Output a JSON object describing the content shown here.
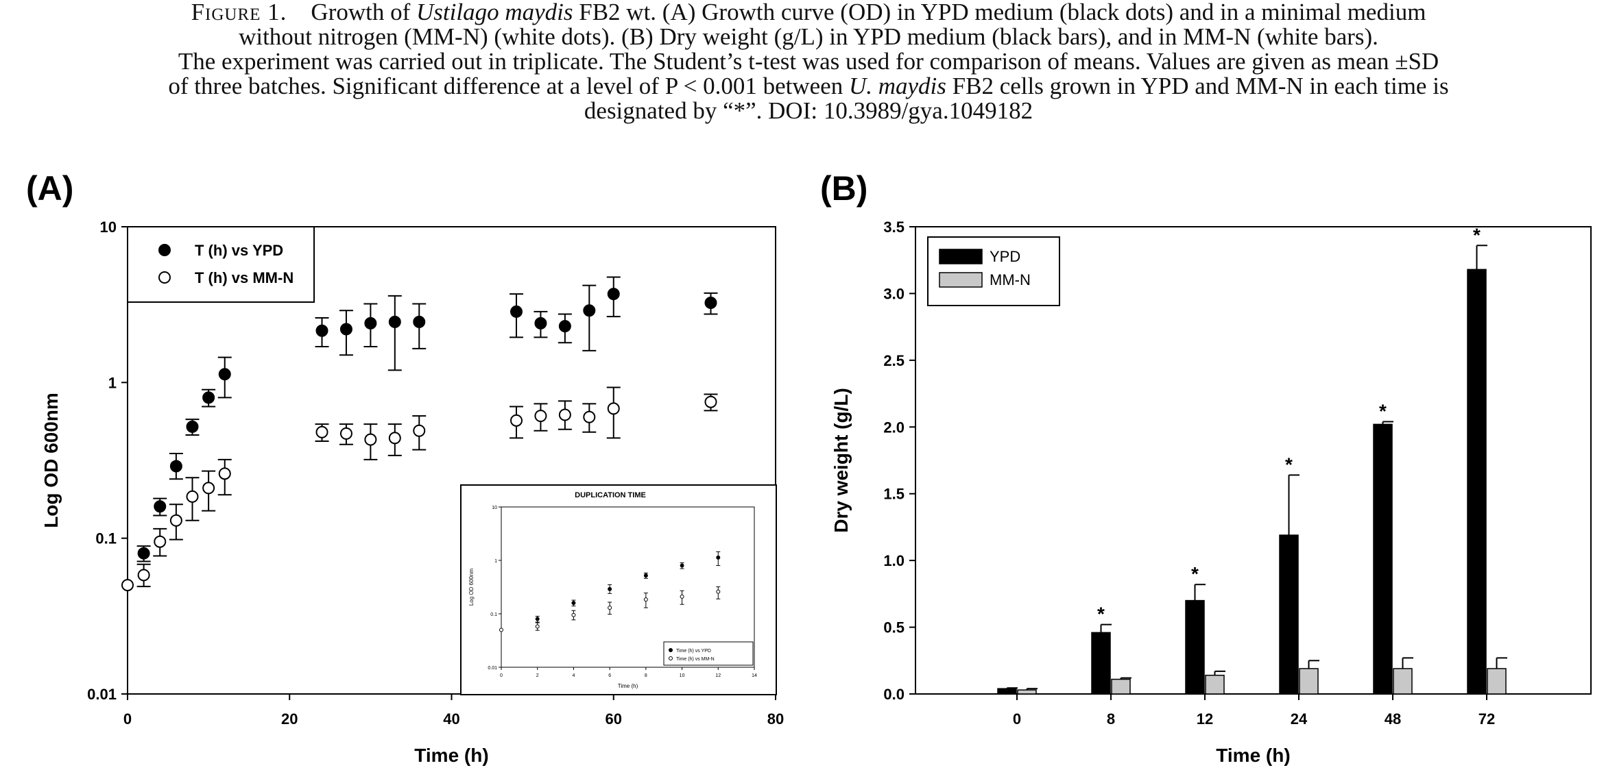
{
  "caption": {
    "label": "Figure 1.",
    "l1_a": "Growth of ",
    "l1_species": "Ustilago maydis",
    "l1_b": " FB2 wt. (A) Growth curve (OD) in YPD medium (black dots) and in a minimal medium",
    "l2": "without nitrogen (MM-N) (white dots). (B) Dry weight (g/L) in YPD medium (black bars), and in MM-N (white bars).",
    "l3": "The experiment was carried out in triplicate. The Student’s t-test was used for comparison of means. Values are given as mean ±SD",
    "l4_a": "of three batches. Significant difference at a level of P < 0.001 between ",
    "l4_species": "U. maydis",
    "l4_b": " FB2 cells grown in YPD and MM-N in each time is",
    "l5": "designated by “*”. DOI: 10.3989/gya.1049182"
  },
  "chart_data": [
    {
      "panel_label": "(A)",
      "type": "scatter",
      "xlabel": "Time (h)",
      "ylabel": "Log OD 600nm",
      "xlim": [
        0,
        80
      ],
      "ylim": [
        0.01,
        10
      ],
      "yscale": "log",
      "xticks": [
        0,
        20,
        40,
        60,
        80
      ],
      "yticks": [
        0.01,
        0.1,
        1,
        10
      ],
      "ytick_labels": [
        "0.01",
        "0.1",
        "1",
        "10"
      ],
      "legend": "top-left",
      "series": [
        {
          "name": "T (h) vs YPD",
          "marker": "filled-circle",
          "color": "#000000",
          "points": [
            {
              "x": 2,
              "y": 0.08,
              "lo": 0.071,
              "hi": 0.089
            },
            {
              "x": 4,
              "y": 0.16,
              "lo": 0.14,
              "hi": 0.18
            },
            {
              "x": 6,
              "y": 0.29,
              "lo": 0.24,
              "hi": 0.35
            },
            {
              "x": 8,
              "y": 0.52,
              "lo": 0.46,
              "hi": 0.58
            },
            {
              "x": 10,
              "y": 0.8,
              "lo": 0.7,
              "hi": 0.9
            },
            {
              "x": 12,
              "y": 1.13,
              "lo": 0.8,
              "hi": 1.45
            },
            {
              "x": 24,
              "y": 2.15,
              "lo": 1.7,
              "hi": 2.6
            },
            {
              "x": 27,
              "y": 2.2,
              "lo": 1.5,
              "hi": 2.9
            },
            {
              "x": 30,
              "y": 2.4,
              "lo": 1.7,
              "hi": 3.2
            },
            {
              "x": 33,
              "y": 2.45,
              "lo": 1.2,
              "hi": 3.6
            },
            {
              "x": 36,
              "y": 2.45,
              "lo": 1.65,
              "hi": 3.2
            },
            {
              "x": 48,
              "y": 2.85,
              "lo": 1.95,
              "hi": 3.7
            },
            {
              "x": 51,
              "y": 2.4,
              "lo": 1.95,
              "hi": 2.85
            },
            {
              "x": 54,
              "y": 2.3,
              "lo": 1.8,
              "hi": 2.75
            },
            {
              "x": 57,
              "y": 2.9,
              "lo": 1.6,
              "hi": 4.2
            },
            {
              "x": 60,
              "y": 3.7,
              "lo": 2.65,
              "hi": 4.75
            },
            {
              "x": 72,
              "y": 3.25,
              "lo": 2.75,
              "hi": 3.75
            }
          ]
        },
        {
          "name": "T (h) vs MM-N",
          "marker": "open-circle",
          "color": "#000000",
          "points": [
            {
              "x": 0,
              "y": 0.05,
              "lo": 0.05,
              "hi": 0.05
            },
            {
              "x": 2,
              "y": 0.058,
              "lo": 0.049,
              "hi": 0.068
            },
            {
              "x": 4,
              "y": 0.095,
              "lo": 0.077,
              "hi": 0.115
            },
            {
              "x": 6,
              "y": 0.13,
              "lo": 0.098,
              "hi": 0.165
            },
            {
              "x": 8,
              "y": 0.185,
              "lo": 0.13,
              "hi": 0.245
            },
            {
              "x": 10,
              "y": 0.21,
              "lo": 0.15,
              "hi": 0.27
            },
            {
              "x": 12,
              "y": 0.26,
              "lo": 0.19,
              "hi": 0.32
            },
            {
              "x": 24,
              "y": 0.48,
              "lo": 0.42,
              "hi": 0.54
            },
            {
              "x": 27,
              "y": 0.47,
              "lo": 0.4,
              "hi": 0.54
            },
            {
              "x": 30,
              "y": 0.43,
              "lo": 0.32,
              "hi": 0.54
            },
            {
              "x": 33,
              "y": 0.44,
              "lo": 0.34,
              "hi": 0.54
            },
            {
              "x": 36,
              "y": 0.49,
              "lo": 0.37,
              "hi": 0.61
            },
            {
              "x": 48,
              "y": 0.57,
              "lo": 0.44,
              "hi": 0.7
            },
            {
              "x": 51,
              "y": 0.61,
              "lo": 0.49,
              "hi": 0.73
            },
            {
              "x": 54,
              "y": 0.62,
              "lo": 0.5,
              "hi": 0.76
            },
            {
              "x": 57,
              "y": 0.6,
              "lo": 0.48,
              "hi": 0.73
            },
            {
              "x": 60,
              "y": 0.68,
              "lo": 0.44,
              "hi": 0.93
            },
            {
              "x": 72,
              "y": 0.75,
              "lo": 0.66,
              "hi": 0.84
            }
          ]
        }
      ],
      "inset": {
        "title": "DUPLICATION TIME",
        "type": "scatter",
        "xlabel": "Time (h)",
        "ylabel": "Log OD 600nm",
        "xlim": [
          0,
          14
        ],
        "ylim": [
          0.01,
          10
        ],
        "yscale": "log",
        "xticks": [
          0,
          2,
          4,
          6,
          8,
          10,
          12,
          14
        ],
        "yticks": [
          0.01,
          0.1,
          1,
          10
        ],
        "ytick_labels": [
          "0.01",
          "0.1",
          "1",
          "10"
        ],
        "legend": "bottom-right",
        "series": [
          {
            "name": "Time (h) vs YPD",
            "marker": "filled-circle",
            "points": [
              {
                "x": 2,
                "y": 0.08,
                "lo": 0.07,
                "hi": 0.09
              },
              {
                "x": 4,
                "y": 0.16,
                "lo": 0.14,
                "hi": 0.18
              },
              {
                "x": 6,
                "y": 0.29,
                "lo": 0.24,
                "hi": 0.35
              },
              {
                "x": 8,
                "y": 0.52,
                "lo": 0.46,
                "hi": 0.58
              },
              {
                "x": 10,
                "y": 0.8,
                "lo": 0.7,
                "hi": 0.9
              },
              {
                "x": 12,
                "y": 1.13,
                "lo": 0.8,
                "hi": 1.45
              }
            ]
          },
          {
            "name": "Time (h) vs MM-N",
            "marker": "open-circle",
            "points": [
              {
                "x": 0,
                "y": 0.05,
                "lo": 0.05,
                "hi": 0.05
              },
              {
                "x": 2,
                "y": 0.058,
                "lo": 0.049,
                "hi": 0.068
              },
              {
                "x": 4,
                "y": 0.095,
                "lo": 0.077,
                "hi": 0.115
              },
              {
                "x": 6,
                "y": 0.13,
                "lo": 0.098,
                "hi": 0.165
              },
              {
                "x": 8,
                "y": 0.185,
                "lo": 0.13,
                "hi": 0.245
              },
              {
                "x": 10,
                "y": 0.21,
                "lo": 0.15,
                "hi": 0.27
              },
              {
                "x": 12,
                "y": 0.26,
                "lo": 0.19,
                "hi": 0.32
              }
            ]
          }
        ]
      }
    },
    {
      "panel_label": "(B)",
      "type": "bar",
      "xlabel": "Time (h)",
      "ylabel": "Dry weight (g/L)",
      "categories": [
        "0",
        "8",
        "12",
        "24",
        "48",
        "72"
      ],
      "ylim": [
        0,
        3.5
      ],
      "yticks": [
        0.0,
        0.5,
        1.0,
        1.5,
        2.0,
        2.5,
        3.0,
        3.5
      ],
      "ytick_labels": [
        "0.0",
        "0.5",
        "1.0",
        "1.5",
        "2.0",
        "2.5",
        "3.0",
        "3.5"
      ],
      "legend": "top-left",
      "significance_mark": "*",
      "significant": [
        false,
        true,
        true,
        true,
        true,
        true
      ],
      "series": [
        {
          "name": "YPD",
          "color": "#000000",
          "values": [
            0.04,
            0.46,
            0.7,
            1.19,
            2.02,
            3.18
          ],
          "errors": [
            0.005,
            0.06,
            0.12,
            0.45,
            0.02,
            0.18
          ]
        },
        {
          "name": "MM-N",
          "color": "#c8c8c8",
          "values": [
            0.03,
            0.11,
            0.14,
            0.19,
            0.19,
            0.19
          ],
          "errors": [
            0.01,
            0.01,
            0.03,
            0.06,
            0.08,
            0.08
          ]
        }
      ]
    }
  ]
}
